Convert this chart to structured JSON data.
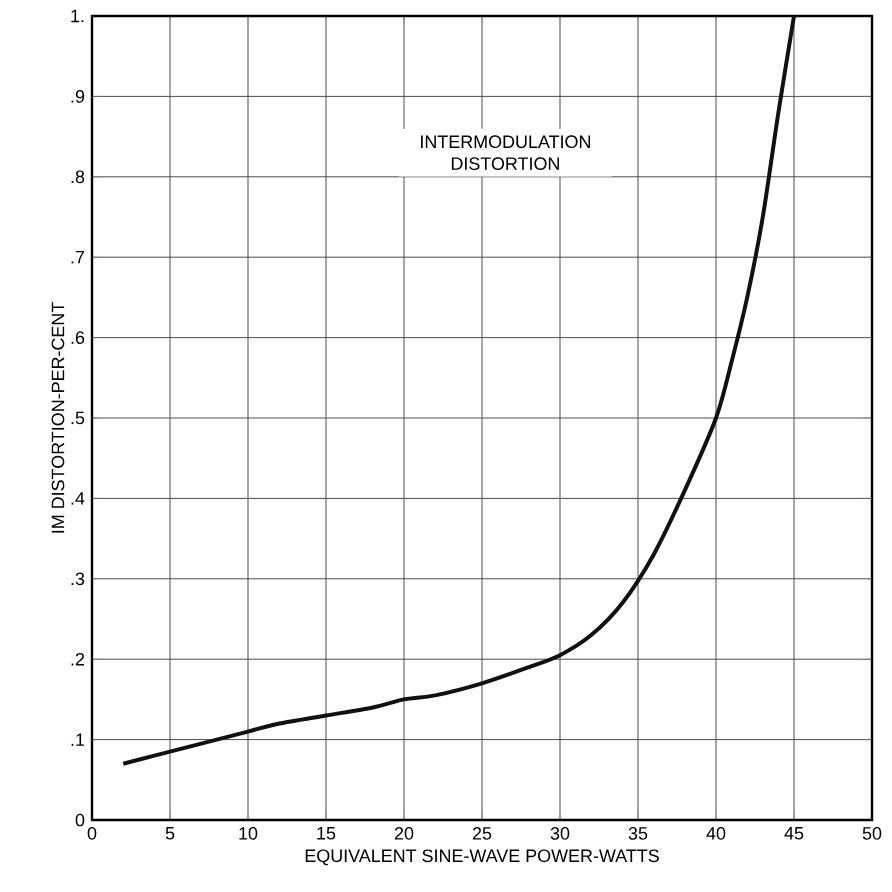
{
  "chart_data": {
    "type": "line",
    "title": "INTERMODULATION DISTORTION",
    "xlabel": "EQUIVALENT SINE-WAVE POWER-WATTS",
    "ylabel": "IM DISTORTION-PER-CENT",
    "x": [
      2,
      4,
      6,
      8,
      10,
      12,
      15,
      18,
      20,
      22,
      25,
      28,
      30,
      32,
      34,
      36,
      38,
      40,
      41,
      42,
      43,
      44,
      45
    ],
    "series": [
      {
        "color": "#111111",
        "values": [
          0.07,
          0.08,
          0.09,
          0.1,
          0.11,
          0.12,
          0.13,
          0.14,
          0.15,
          0.155,
          0.17,
          0.19,
          0.205,
          0.23,
          0.27,
          0.33,
          0.41,
          0.5,
          0.57,
          0.65,
          0.75,
          0.88,
          1.0
        ]
      }
    ],
    "xlim": [
      0,
      50
    ],
    "ylim": [
      0,
      1
    ],
    "xticks": [
      0,
      5,
      10,
      15,
      20,
      25,
      30,
      35,
      40,
      45,
      50
    ],
    "yticks": [
      0,
      {
        "value": 0.1,
        "label": ".1"
      },
      {
        "value": 0.2,
        "label": ".2"
      },
      {
        "value": 0.3,
        "label": ".3"
      },
      {
        "value": 0.4,
        "label": ".4"
      },
      {
        "value": 0.5,
        "label": ".5"
      },
      {
        "value": 0.6,
        "label": ".6"
      },
      {
        "value": 0.7,
        "label": ".7"
      },
      {
        "value": 0.8,
        "label": ".8"
      },
      {
        "value": 0.9,
        "label": ".9"
      },
      {
        "value": 1,
        "label": "1."
      }
    ],
    "grid": true,
    "marker": "none",
    "line_style": "solid"
  }
}
